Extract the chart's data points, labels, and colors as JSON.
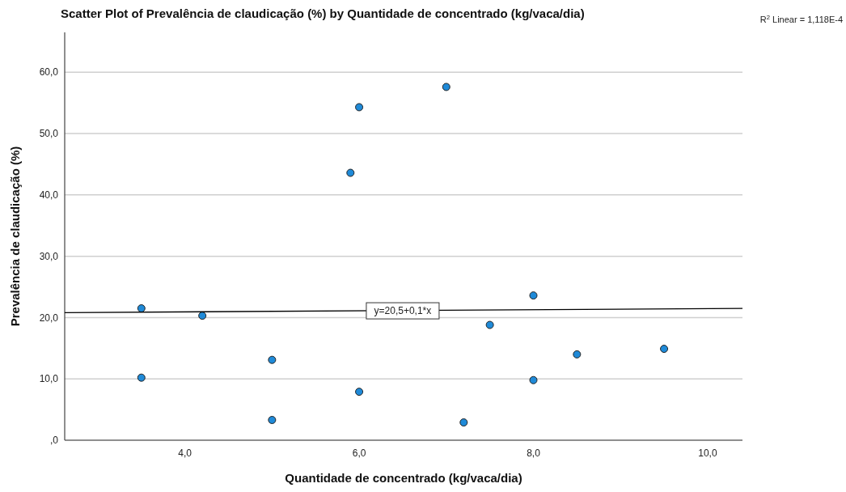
{
  "chart_data": {
    "type": "scatter",
    "title": "Scatter Plot of Prevalência de claudicação (%) by Quantidade de concentrado (kg/vaca/dia)",
    "xlabel": "Quantidade de concentrado (kg/vaca/dia)",
    "ylabel": "Prevalência de claudicação (%)",
    "annotations": [
      "R$^{2}$ Linear = 1,118E-4",
      {
        "text": "y=20,5+0,1*x",
        "x": 6.5,
        "y": 21.1
      }
    ],
    "series": [
      {
        "color": "#1f8ad8",
        "marker": "circle",
        "x": [
          3.5,
          3.5,
          4.2,
          5.0,
          5.0,
          6.0,
          5.9,
          6.0,
          7.0,
          7.2,
          7.5,
          8.0,
          8.0,
          8.5,
          9.5
        ],
        "values": [
          21.5,
          10.2,
          20.3,
          13.1,
          3.3,
          7.9,
          43.6,
          54.3,
          57.6,
          2.9,
          18.8,
          23.6,
          9.8,
          14.0,
          14.9
        ]
      },
      {
        "type": "line",
        "color": "#000000",
        "marker": "none",
        "x": [
          2.62,
          10.4
        ],
        "values": [
          20.8,
          21.5
        ]
      }
    ],
    "xlim": [
      2.62,
      10.4
    ],
    "xticks": [
      {
        "value": 4,
        "label": "4,0"
      },
      {
        "value": 6,
        "label": "6,0"
      },
      {
        "value": 8,
        "label": "8,0"
      },
      {
        "value": 10,
        "label": "10,0"
      }
    ],
    "ylim": [
      0,
      66.5
    ],
    "yticks": [
      {
        "value": 0,
        "label": ",0"
      },
      {
        "value": 10,
        "label": "10,0"
      },
      {
        "value": 20,
        "label": "20,0"
      },
      {
        "value": 30,
        "label": "30,0"
      },
      {
        "value": 40,
        "label": "40,0"
      },
      {
        "value": 50,
        "label": "50,0"
      },
      {
        "value": 60,
        "label": "60,0"
      }
    ],
    "grid": "y"
  }
}
